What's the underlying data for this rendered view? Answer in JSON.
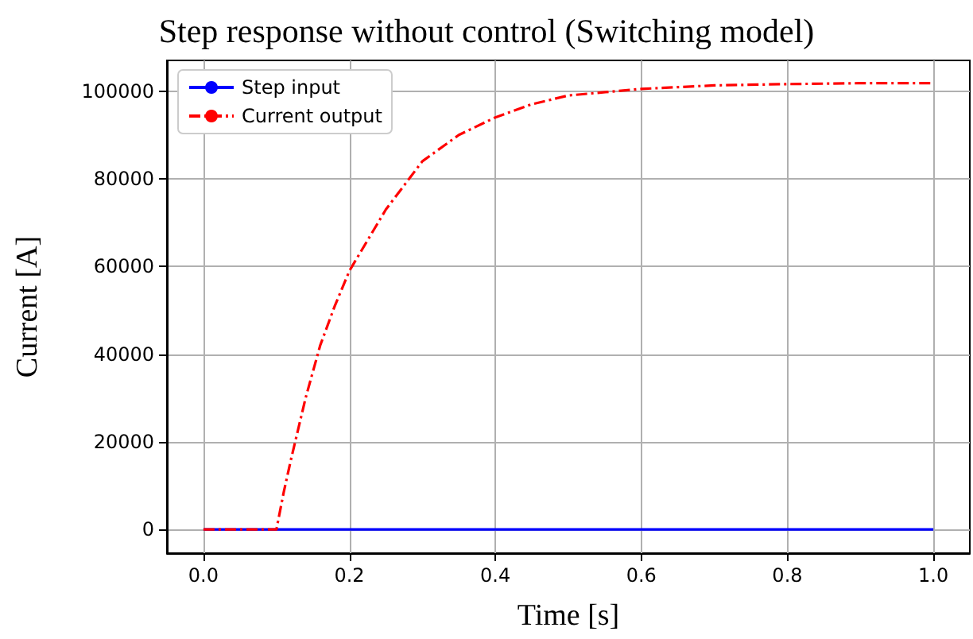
{
  "chart_data": {
    "type": "line",
    "title": "Step response without control (Switching model)",
    "xlabel": "Time [s]",
    "ylabel": "Current [A]",
    "xlim": [
      -0.05,
      1.05
    ],
    "xticks": [
      {
        "value": 0,
        "label": "0.0"
      },
      {
        "value": 0.2,
        "label": "0.2"
      },
      {
        "value": 0.4,
        "label": "0.4"
      },
      {
        "value": 0.6,
        "label": "0.6"
      },
      {
        "value": 0.8,
        "label": "0.8"
      },
      {
        "value": 1,
        "label": "1.0"
      }
    ],
    "ylim": [
      -5400,
      107000
    ],
    "yticks": [
      0,
      20000,
      40000,
      60000,
      80000,
      100000
    ],
    "grid": true,
    "legend": "top left",
    "marker": "none",
    "series": [
      {
        "name": "Step input",
        "color": "#0000ff",
        "line_style": "solid",
        "x": [
          0,
          1
        ],
        "values": [
          0,
          0
        ]
      },
      {
        "name": "Current output",
        "color": "#ff0000",
        "line_style": "dashdot",
        "x": [
          0,
          0.1,
          0.11,
          0.12,
          0.14,
          0.16,
          0.18,
          0.2,
          0.25,
          0.3,
          0.35,
          0.4,
          0.45,
          0.5,
          0.6,
          0.7,
          0.8,
          0.9,
          1.0
        ],
        "values": [
          0,
          0,
          8500,
          16000,
          30000,
          42000,
          51000,
          59000,
          73000,
          84000,
          90000,
          94000,
          97000,
          99000,
          100500,
          101300,
          101600,
          101800,
          101800
        ]
      }
    ]
  }
}
